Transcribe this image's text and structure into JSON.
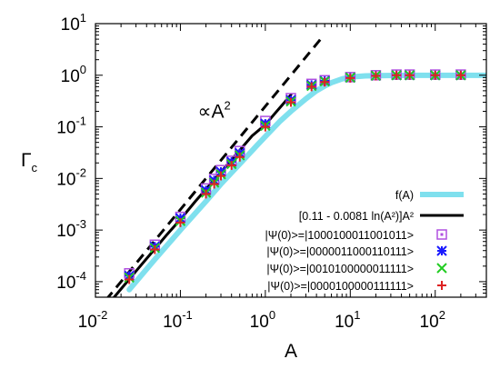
{
  "chart_data": {
    "type": "line",
    "xscale": "log",
    "yscale": "log",
    "xlim": [
      0.01,
      400
    ],
    "ylim": [
      5e-05,
      10
    ],
    "xlabel": "A",
    "ylabel": "Γ",
    "ylabel_sub": "c",
    "grid": false,
    "legend_position": "bottom-right",
    "x_ticks": [
      {
        "base": "10",
        "exp": "-2",
        "value": 0.01
      },
      {
        "base": "10",
        "exp": "-1",
        "value": 0.1
      },
      {
        "base": "10",
        "exp": "0",
        "value": 1
      },
      {
        "base": "10",
        "exp": "1",
        "value": 10
      },
      {
        "base": "10",
        "exp": "2",
        "value": 100
      }
    ],
    "y_ticks": [
      {
        "base": "10",
        "exp": "-4",
        "value": 0.0001
      },
      {
        "base": "10",
        "exp": "-3",
        "value": 0.001
      },
      {
        "base": "10",
        "exp": "-2",
        "value": 0.01
      },
      {
        "base": "10",
        "exp": "-1",
        "value": 0.1
      },
      {
        "base": "10",
        "exp": "0",
        "value": 1
      },
      {
        "base": "10",
        "exp": "1",
        "value": 10
      }
    ],
    "annotation": {
      "prefix": "∝A",
      "exp": "2",
      "x": 0.16,
      "y": 0.15
    },
    "dashed_line": {
      "coef": 0.25,
      "power": 2,
      "x_range": [
        0.01,
        4.5
      ],
      "color": "#000000"
    },
    "series": [
      {
        "name": "f(A)",
        "kind": "line",
        "color": "#7fe0ee",
        "x": [
          0.025,
          0.05,
          0.1,
          0.2,
          0.3,
          0.5,
          0.8,
          1.0,
          1.5,
          2.0,
          3.0,
          4.0,
          5.0,
          6.0,
          8.0,
          10.0,
          15.0,
          20.0,
          35.0,
          60.0,
          100.0,
          200.0,
          400.0
        ],
        "y": [
          7e-05,
          0.00027,
          0.001,
          0.0036,
          0.0078,
          0.019,
          0.044,
          0.065,
          0.13,
          0.2,
          0.35,
          0.5,
          0.62,
          0.72,
          0.85,
          0.92,
          0.97,
          0.985,
          0.99,
          0.995,
          0.995,
          0.995,
          0.995
        ]
      },
      {
        "name": "[0.11 - 0.0081 ln(A²)]A²",
        "kind": "line",
        "color": "#000000",
        "x": [
          0.015,
          0.02,
          0.03,
          0.05,
          0.07,
          0.1,
          0.15,
          0.2,
          0.3,
          0.5,
          0.7,
          1.0,
          1.3,
          1.6,
          2.0
        ],
        "y": [
          4.1e-05,
          7.2e-05,
          0.00016,
          0.00043,
          0.00083,
          0.0016,
          0.0036,
          0.0062,
          0.0133,
          0.0352,
          0.0671,
          0.11,
          0.183,
          0.271,
          0.418
        ]
      },
      {
        "name": "|Ψ(0)>=|1000100011001011>",
        "kind": "markers",
        "marker": "square",
        "color": "#b050e0",
        "x": [
          0.025,
          0.05,
          0.1,
          0.2,
          0.25,
          0.3,
          0.4,
          0.5,
          1.0,
          2.0,
          3.5,
          5.0,
          10,
          20,
          35,
          50,
          100,
          200
        ],
        "y": [
          0.000145,
          0.00052,
          0.0018,
          0.0064,
          0.0098,
          0.0145,
          0.022,
          0.034,
          0.13,
          0.36,
          0.68,
          0.8,
          0.92,
          1.0,
          1.03,
          1.03,
          1.03,
          1.03
        ]
      },
      {
        "name": "|Ψ(0)>=|0000011000110111>",
        "kind": "markers",
        "marker": "asterisk",
        "color": "#1a1aff",
        "x": [
          0.025,
          0.05,
          0.1,
          0.2,
          0.25,
          0.3,
          0.4,
          0.5,
          1.0,
          2.0,
          3.5,
          5.0,
          10,
          20,
          35,
          50,
          100,
          200
        ],
        "y": [
          0.00013,
          0.00048,
          0.0017,
          0.0059,
          0.0092,
          0.0135,
          0.021,
          0.031,
          0.115,
          0.33,
          0.65,
          0.78,
          0.9,
          0.98,
          1.0,
          1.0,
          1.0,
          1.0
        ]
      },
      {
        "name": "|Ψ(0)>=|0010100000011111>",
        "kind": "markers",
        "marker": "x",
        "color": "#22cc22",
        "x": [
          0.025,
          0.05,
          0.1,
          0.2,
          0.25,
          0.3,
          0.4,
          0.5,
          1.0,
          2.0,
          3.5,
          5.0,
          10,
          20,
          35,
          50,
          100,
          200
        ],
        "y": [
          0.00012,
          0.00045,
          0.0015,
          0.0053,
          0.0083,
          0.012,
          0.019,
          0.028,
          0.105,
          0.31,
          0.62,
          0.76,
          0.9,
          0.98,
          1.0,
          1.0,
          1.0,
          1.0
        ]
      },
      {
        "name": "|Ψ(0)>=|0000100000111111>",
        "kind": "markers",
        "marker": "plus",
        "color": "#dd2222",
        "x": [
          0.025,
          0.05,
          0.1,
          0.2,
          0.25,
          0.3,
          0.4,
          0.5,
          1.0,
          2.0,
          3.5,
          5.0,
          10,
          20,
          35,
          50,
          100,
          200
        ],
        "y": [
          0.00011,
          0.00042,
          0.0014,
          0.005,
          0.0078,
          0.0112,
          0.018,
          0.026,
          0.1,
          0.3,
          0.6,
          0.74,
          0.88,
          0.97,
          1.0,
          1.0,
          1.0,
          1.0
        ]
      }
    ]
  }
}
